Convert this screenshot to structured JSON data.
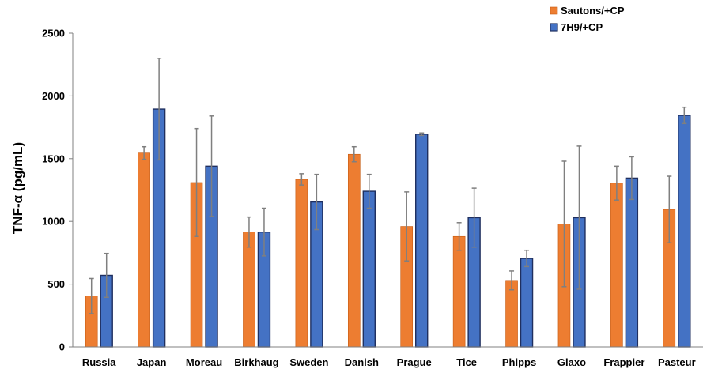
{
  "chart_data": {
    "type": "bar",
    "title": "",
    "xlabel": "",
    "ylabel": "TNF-α (pg/mL)",
    "ylim": [
      0,
      2500
    ],
    "yticks": [
      0,
      500,
      1000,
      1500,
      2000,
      2500
    ],
    "grid": false,
    "legend_position": "top-right",
    "categories": [
      "Russia",
      "Japan",
      "Moreau",
      "Birkhaug",
      "Sweden",
      "Danish",
      "Prague",
      "Tice",
      "Phipps",
      "Glaxo",
      "Frappier",
      "Pasteur"
    ],
    "series": [
      {
        "name": "Sautons/+CP",
        "color": "#ED7D31",
        "values": [
          405,
          1545,
          1310,
          915,
          1335,
          1535,
          960,
          880,
          530,
          980,
          1305,
          1095
        ],
        "errors": [
          140,
          50,
          430,
          120,
          45,
          60,
          275,
          110,
          75,
          500,
          135,
          265
        ]
      },
      {
        "name": "7H9/+CP",
        "color": "#4472C4",
        "values": [
          570,
          1895,
          1440,
          915,
          1155,
          1240,
          1695,
          1030,
          705,
          1030,
          1345,
          1845
        ],
        "errors": [
          175,
          405,
          400,
          190,
          220,
          135,
          10,
          235,
          65,
          570,
          170,
          65
        ]
      }
    ]
  }
}
